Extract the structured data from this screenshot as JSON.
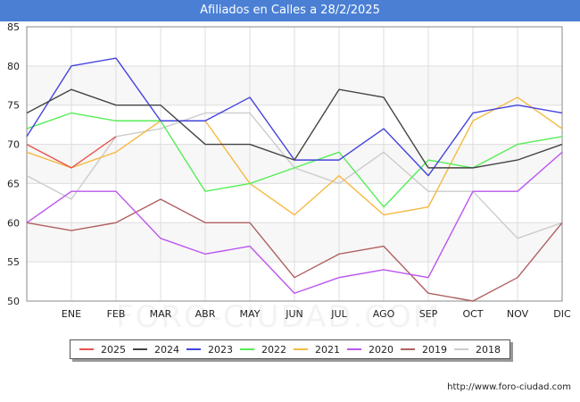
{
  "chart_data": {
    "type": "line",
    "title": "Afiliados en Calles a 28/2/2025",
    "categories": [
      "",
      "ENE",
      "FEB",
      "MAR",
      "ABR",
      "MAY",
      "JUN",
      "JUL",
      "AGO",
      "SEP",
      "OCT",
      "NOV",
      "DIC"
    ],
    "yticks": [
      50,
      55,
      60,
      65,
      70,
      75,
      80,
      85
    ],
    "ylim": [
      50,
      85
    ],
    "xlabel": "",
    "ylabel": "",
    "grid": true,
    "legend_position": "bottom",
    "series": [
      {
        "name": "2025",
        "color": "#e8524a",
        "values": [
          70,
          67,
          71,
          null,
          null,
          null,
          null,
          null,
          null,
          null,
          null,
          null,
          null
        ]
      },
      {
        "name": "2024",
        "color": "#444444",
        "values": [
          74,
          77,
          75,
          75,
          70,
          70,
          68,
          77,
          76,
          67,
          67,
          68,
          70
        ]
      },
      {
        "name": "2023",
        "color": "#4444dd",
        "values": [
          71,
          80,
          81,
          73,
          73,
          76,
          68,
          68,
          72,
          66,
          74,
          75,
          74
        ]
      },
      {
        "name": "2022",
        "color": "#55ee55",
        "values": [
          72,
          74,
          73,
          73,
          64,
          65,
          67,
          69,
          62,
          68,
          67,
          70,
          71
        ]
      },
      {
        "name": "2021",
        "color": "#f5b942",
        "values": [
          69,
          67,
          69,
          73,
          73,
          65,
          61,
          66,
          61,
          62,
          73,
          76,
          72
        ]
      },
      {
        "name": "2020",
        "color": "#bb55ee",
        "values": [
          60,
          64,
          64,
          58,
          56,
          57,
          51,
          53,
          54,
          53,
          64,
          64,
          69
        ]
      },
      {
        "name": "2019",
        "color": "#b06060",
        "values": [
          60,
          59,
          60,
          63,
          60,
          60,
          53,
          56,
          57,
          51,
          50,
          53,
          60
        ]
      },
      {
        "name": "2018",
        "color": "#cccccc",
        "values": [
          66,
          63,
          71,
          72,
          74,
          74,
          67,
          65,
          69,
          64,
          64,
          58,
          60
        ]
      }
    ]
  },
  "watermark": "FORO-CIUDAD.COM",
  "source": "http://www.foro-ciudad.com"
}
